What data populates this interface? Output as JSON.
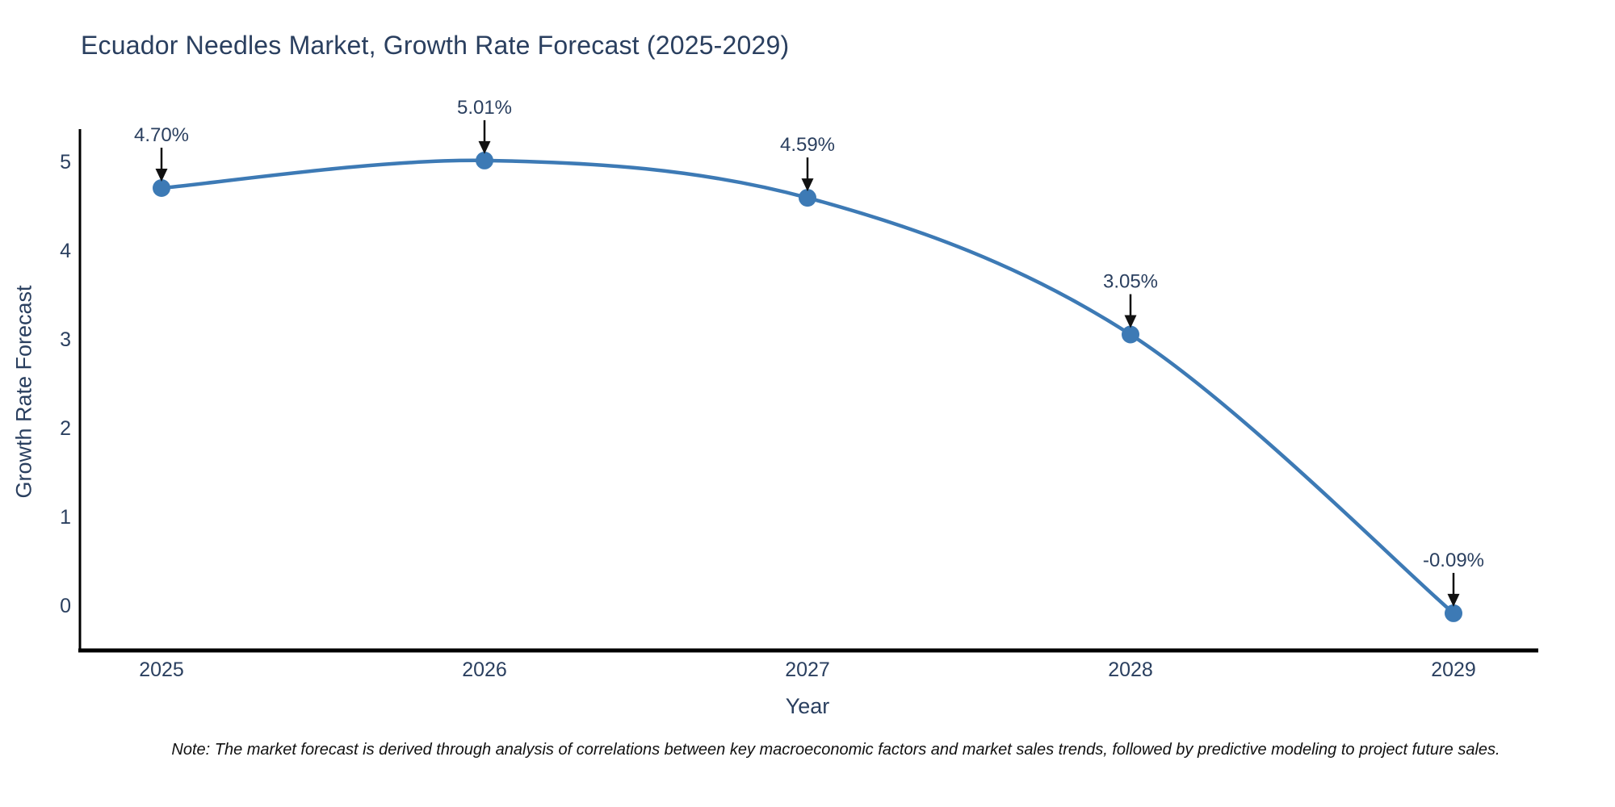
{
  "colors": {
    "line": "#3d7ab5",
    "marker": "#3d7ab5",
    "axis_spine": "#000000",
    "tick_text": "#2a3f5f",
    "title_text": "#2a3f5f",
    "arrow": "#111111",
    "note_text": "#111111",
    "background": "#ffffff"
  },
  "chart_data": {
    "type": "line",
    "title": "Ecuador Needles Market, Growth Rate Forecast (2025-2029)",
    "xlabel": "Year",
    "ylabel": "Growth Rate Forecast",
    "categories": [
      2025,
      2026,
      2027,
      2028,
      2029
    ],
    "values": [
      4.7,
      5.01,
      4.59,
      3.05,
      -0.09
    ],
    "point_labels": [
      "4.70%",
      "5.01%",
      "4.59%",
      "3.05%",
      "-0.09%"
    ],
    "y_ticks": [
      0,
      1,
      2,
      3,
      4,
      5
    ],
    "ylim": [
      -0.5,
      5.4
    ],
    "grid": false,
    "legend_position": "none",
    "annotation_style": "down-arrow-to-point",
    "note": "Note: The market forecast is derived through analysis of correlations between key macroeconomic factors and market sales trends, followed by predictive modeling to project future sales."
  }
}
